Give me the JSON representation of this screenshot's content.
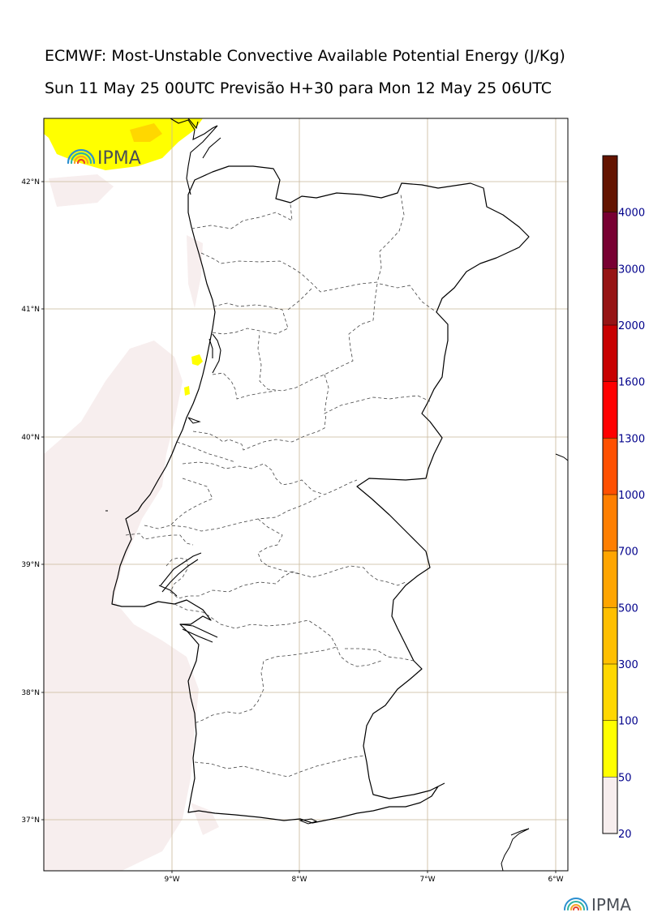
{
  "header": {
    "title_line1": "ECMWF: Most-Unstable Convective Available Potential Energy (J/Kg)",
    "title_line2": "Sun 11 May 25 00UTC Previsão H+30 para Mon 12 May 25 06UTC"
  },
  "logos": {
    "map_logo_text": "IPMA",
    "footer_logo_text": "IPMA"
  },
  "map": {
    "region": "Portugal (mainland)",
    "lat_range": [
      36.6,
      42.5
    ],
    "lon_range": [
      -10.0,
      -5.9
    ],
    "lat_labels": [
      "42°N",
      "41°N",
      "40°N",
      "39°N",
      "38°N",
      "37°N"
    ],
    "lon_labels": [
      "9°W",
      "8°W",
      "7°W",
      "6°W"
    ],
    "grid_color": "#c8b89a",
    "coastline_color": "#000000",
    "district_border_style": "dashed"
  },
  "colorbar": {
    "ticks": [
      "20",
      "50",
      "100",
      "300",
      "500",
      "700",
      "1000",
      "1300",
      "1600",
      "2000",
      "3000",
      "4000"
    ],
    "colors": [
      "#f7eeee",
      "#ffff00",
      "#ffd700",
      "#ffbf00",
      "#ffa500",
      "#ff7f00",
      "#ff5000",
      "#ff0000",
      "#c80000",
      "#961414",
      "#780032",
      "#641400"
    ],
    "tick_label_color": "#00008b"
  },
  "chart_data": {
    "type": "heatmap",
    "title": "ECMWF: Most-Unstable Convective Available Potential Energy (J/Kg)",
    "subtitle": "Sun 11 May 25 00UTC Previsão H+30 para Mon 12 May 25 06UTC",
    "xlabel": "",
    "ylabel": "",
    "x_ticks": [
      "9°W",
      "8°W",
      "7°W",
      "6°W"
    ],
    "y_ticks": [
      "42°N",
      "41°N",
      "40°N",
      "39°N",
      "38°N",
      "37°N"
    ],
    "levels": [
      20,
      50,
      100,
      300,
      500,
      700,
      1000,
      1300,
      1600,
      2000,
      3000,
      4000
    ],
    "regions": [
      {
        "area": "offshore north-west (near 42.3°N, 9.6°W)",
        "range_jkg": [
          50,
          100
        ]
      },
      {
        "area": "coastal strip near 40.6°N, 8.8°W",
        "range_jkg": [
          50,
          100
        ]
      },
      {
        "area": "Atlantic offshore west and south-west",
        "range_jkg": [
          20,
          50
        ]
      }
    ]
  }
}
